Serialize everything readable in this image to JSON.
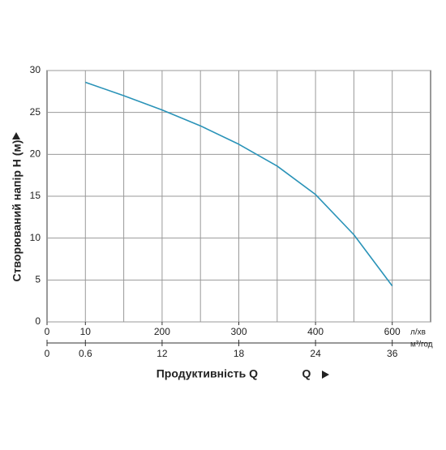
{
  "chart_data": {
    "type": "line",
    "ylabel": "Створюваний напір H (м)",
    "xlabel": "Продуктивність Q",
    "x_unit": "л/хв",
    "x2_unit": "м³/год",
    "x": [
      10,
      105,
      200,
      250,
      300,
      350,
      400,
      500,
      600
    ],
    "series": [
      {
        "color": "#2a93b8",
        "values": [
          28.6,
          27.0,
          25.3,
          23.4,
          21.2,
          18.6,
          15.2,
          10.4,
          4.3
        ]
      }
    ],
    "ylim": [
      0,
      30
    ],
    "yticks": [
      0,
      5,
      10,
      15,
      20,
      25,
      30
    ],
    "xticks": [
      0,
      10,
      200,
      300,
      400,
      600
    ],
    "x2ticks": [
      0,
      0.6,
      12,
      18,
      24,
      36
    ],
    "grid": true
  }
}
